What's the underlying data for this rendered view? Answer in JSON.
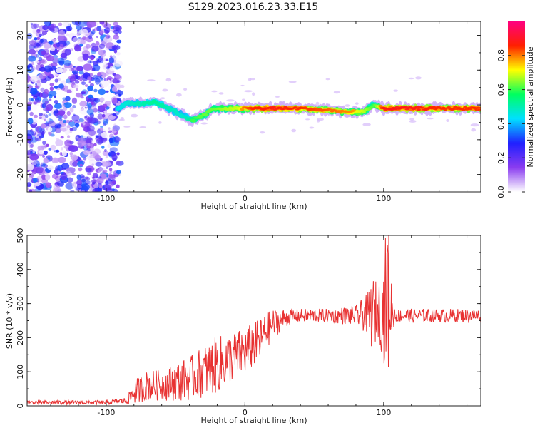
{
  "title": "S129.2023.016.23.33.E15",
  "chart_data": [
    {
      "type": "heatmap",
      "title": "S129.2023.016.23.33.E15",
      "xlabel": "Height of straight line (km)",
      "ylabel": "Frequency (Hz)",
      "xlim": [
        -157,
        170
      ],
      "ylim": [
        -25,
        24
      ],
      "x_ticks": [
        -100,
        0,
        100
      ],
      "y_ticks": [
        -20,
        -10,
        0,
        10,
        20
      ],
      "colorbar": {
        "label": "Normalized spectral amplitude",
        "range": [
          0.0,
          1.0
        ],
        "ticks": [
          0.0,
          0.2,
          0.4,
          0.6,
          0.8
        ],
        "tick_labels": [
          "0.0",
          "0.2",
          "0.4",
          "0.6",
          "0.8"
        ],
        "colormap": [
          "#ffffff",
          "#8a3cf0",
          "#2020ff",
          "#00e0ff",
          "#00ff60",
          "#ffff00",
          "#ff2000",
          "#ff0080"
        ]
      },
      "noise_region_x": [
        -157,
        -90
      ],
      "track": {
        "x": [
          -92,
          -85,
          -75,
          -65,
          -55,
          -45,
          -38,
          -30,
          -22,
          -15,
          -5,
          5,
          20,
          40,
          60,
          75,
          85,
          93,
          100,
          120,
          140,
          160,
          170
        ],
        "y": [
          -1,
          0.5,
          0.5,
          1,
          -1,
          -3,
          -4.5,
          -3,
          -1,
          -1,
          -1,
          -1,
          -1,
          -1,
          -1.5,
          -2,
          -2,
          0,
          -1,
          -1,
          -1,
          -1,
          -1
        ],
        "amplitude": [
          0.45,
          0.5,
          0.55,
          0.6,
          0.55,
          0.5,
          0.6,
          0.65,
          0.65,
          0.7,
          0.75,
          0.9,
          0.95,
          0.9,
          0.85,
          0.8,
          0.75,
          0.6,
          0.95,
          0.95,
          0.9,
          0.9,
          0.9
        ]
      }
    },
    {
      "type": "line",
      "xlabel": "Height of straight line (km)",
      "ylabel": "SNR (10 * v/v)",
      "xlim": [
        -157,
        170
      ],
      "ylim": [
        0,
        500
      ],
      "x_ticks": [
        -100,
        0,
        100
      ],
      "y_ticks": [
        0,
        100,
        200,
        300,
        400,
        500
      ],
      "color": "#e83232",
      "series": [
        {
          "x": [
            -157,
            -140,
            -120,
            -100,
            -85,
            -80,
            -70,
            -60,
            -50,
            -40,
            -30,
            -20,
            -10,
            0,
            10,
            20,
            30,
            40,
            60,
            80,
            88,
            92,
            96,
            100,
            102,
            104,
            106,
            110,
            130,
            150,
            170
          ],
          "y": [
            10,
            10,
            10,
            10,
            15,
            40,
            60,
            60,
            70,
            80,
            100,
            120,
            140,
            160,
            190,
            240,
            260,
            265,
            265,
            265,
            270,
            270,
            280,
            270,
            320,
            350,
            270,
            265,
            265,
            265,
            265
          ],
          "spread": [
            6,
            6,
            6,
            6,
            10,
            35,
            45,
            45,
            55,
            65,
            75,
            85,
            75,
            70,
            65,
            45,
            25,
            20,
            20,
            30,
            60,
            110,
            80,
            140,
            230,
            250,
            50,
            20,
            20,
            20,
            20
          ]
        }
      ]
    }
  ]
}
